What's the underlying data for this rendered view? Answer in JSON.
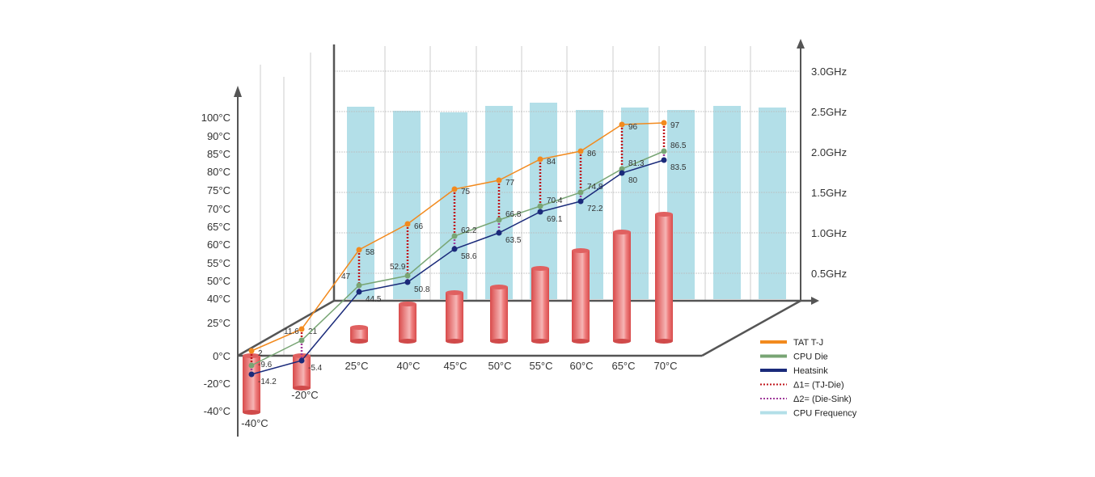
{
  "chart_data": {
    "type": "line",
    "categories": [
      "-40°C",
      "-20°C",
      "25°C",
      "40°C",
      "45°C",
      "50°C",
      "55°C",
      "60°C",
      "65°C",
      "70°C"
    ],
    "series": [
      {
        "name": "TAT T-J",
        "color": "#f28a1e",
        "values": [
          2,
          21,
          58,
          66,
          75,
          77,
          84,
          86,
          96,
          97
        ]
      },
      {
        "name": "CPU Die",
        "color": "#78a574",
        "values": [
          -9.6,
          11.6,
          47,
          52.9,
          62.2,
          66.8,
          70.4,
          74.8,
          81.3,
          86.5
        ]
      },
      {
        "name": "Heatsink",
        "color": "#1a2a7a",
        "values": [
          -14.2,
          -5.4,
          44.5,
          50.8,
          58.6,
          63.5,
          69.1,
          72.2,
          80,
          83.5
        ]
      }
    ],
    "delta_series": [
      {
        "name": "Δ1= (TJ-Die)",
        "color": "#c0151b"
      },
      {
        "name": "Δ2= (Die-Sink)",
        "color": "#a03a9a"
      }
    ],
    "frequency_series": {
      "name": "CPU Frequency",
      "color": "#b3dfe8",
      "unit": "GHz",
      "values": [
        2.56,
        2.51,
        2.49,
        2.57,
        2.61,
        2.52,
        2.55,
        2.52,
        2.57,
        2.55
      ]
    },
    "ambient_bars": {
      "color": "#e05a5a",
      "values": [
        -40,
        -20,
        25,
        40,
        45,
        50,
        55,
        60,
        65,
        70
      ]
    },
    "left_axis_ticks": [
      "100°C",
      "90°C",
      "85°C",
      "80°C",
      "75°C",
      "70°C",
      "65°C",
      "60°C",
      "55°C",
      "50°C",
      "40°C",
      "25°C",
      "0°C",
      "-20°C",
      "-40°C"
    ],
    "right_axis_ticks": [
      "3.0GHz",
      "2.5GHz",
      "2.0GHz",
      "1.5GHz",
      "1.0GHz",
      "0.5GHz"
    ],
    "grid": true,
    "legend_placement": "bottom-right"
  }
}
